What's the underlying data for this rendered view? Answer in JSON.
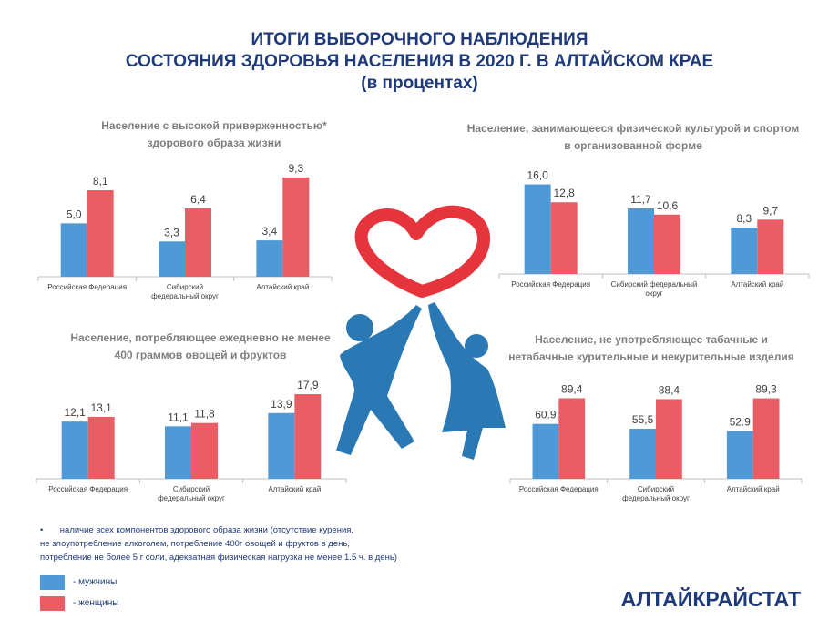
{
  "title": {
    "line1": "ИТОГИ ВЫБОРОЧНОГО НАБЛЮДЕНИЯ",
    "line2": "СОСТОЯНИЯ ЗДОРОВЬЯ НАСЕЛЕНИЯ В 2020 Г. В АЛТАЙСКОМ КРАЕ",
    "line3": "(в процентах)"
  },
  "colors": {
    "men": "#4f9ad6",
    "women": "#e95d64",
    "heart": "#e6343d",
    "figures": "#2a79b4",
    "title": "#1f3a7a"
  },
  "chart_data": [
    {
      "type": "bar",
      "title_line1": "Население с высокой приверженностью*",
      "title_line2": "здорового образа жизни",
      "categories": [
        [
          "Российская Федерация"
        ],
        [
          "Сибирский",
          "федеральный округ"
        ],
        [
          "Алтайский край"
        ]
      ],
      "series": [
        {
          "name": "мужчины",
          "values": [
            5.0,
            3.3,
            3.4
          ],
          "labels": [
            "5,0",
            "3,3",
            "3,4"
          ]
        },
        {
          "name": "женщины",
          "values": [
            8.1,
            6.4,
            9.3
          ],
          "labels": [
            "8,1",
            "6,4",
            "9,3"
          ]
        }
      ],
      "ylim": [
        0,
        10.4
      ]
    },
    {
      "type": "bar",
      "title_line1": "Население, занимающееся физической культурой и спортом",
      "title_line2": "в организованной форме",
      "categories": [
        [
          "Российская Федерация"
        ],
        [
          "Сибирский федеральный",
          "округ"
        ],
        [
          "Алтайский край"
        ]
      ],
      "series": [
        {
          "name": "мужчины",
          "values": [
            16.0,
            11.7,
            8.3
          ],
          "labels": [
            "16,0",
            "11,7",
            "8,3"
          ]
        },
        {
          "name": "женщины",
          "values": [
            12.8,
            10.6,
            9.7
          ],
          "labels": [
            "12,8",
            "10,6",
            "9,7"
          ]
        }
      ],
      "ylim": [
        0,
        18.2
      ]
    },
    {
      "type": "bar",
      "title_line1": "Население, потребляющее ежедневно не менее",
      "title_line2": "400 граммов овощей и фруктов",
      "categories": [
        [
          "Российская Федерация"
        ],
        [
          "Сибирский",
          "федеральный округ"
        ],
        [
          "Алтайский край"
        ]
      ],
      "series": [
        {
          "name": "мужчины",
          "values": [
            12.1,
            11.1,
            13.9
          ],
          "labels": [
            "12,1",
            "11,1",
            "13,9"
          ]
        },
        {
          "name": "женщины",
          "values": [
            13.1,
            11.8,
            17.9
          ],
          "labels": [
            "13,1",
            "11,8",
            "17,9"
          ]
        }
      ],
      "ylim": [
        0,
        20.6
      ]
    },
    {
      "type": "bar",
      "title_line1": "Население, не употребляющее табачные и",
      "title_line2": "нетабачные курительные и некурительные изделия",
      "categories": [
        [
          "Российская Федерация"
        ],
        [
          "Сибирский",
          "федеральный округ"
        ],
        [
          "Алтайский край"
        ]
      ],
      "series": [
        {
          "name": "мужчины",
          "values": [
            60.9,
            55.5,
            52.9
          ],
          "labels": [
            "60.9",
            "55,5",
            "52.9"
          ]
        },
        {
          "name": "женщины",
          "values": [
            89.4,
            88.4,
            89.3
          ],
          "labels": [
            "89,4",
            "88,4",
            "89,3"
          ]
        }
      ],
      "ylim": [
        0,
        103
      ]
    }
  ],
  "footnote": {
    "line1": "•       наличие всех компонентов здорового образа жизни (отсутствие курения,",
    "line2": "не злоупотребление алкоголем, потребление 400г овощей и фруктов в день,",
    "line3": "потребление не более 5 г соли, адекватная физическая нагрузка не менее 1.5 ч. в день)"
  },
  "legend": {
    "men": "- мужчины",
    "women": "- женщины"
  },
  "brand": "АЛТАЙКРАЙСТАТ"
}
